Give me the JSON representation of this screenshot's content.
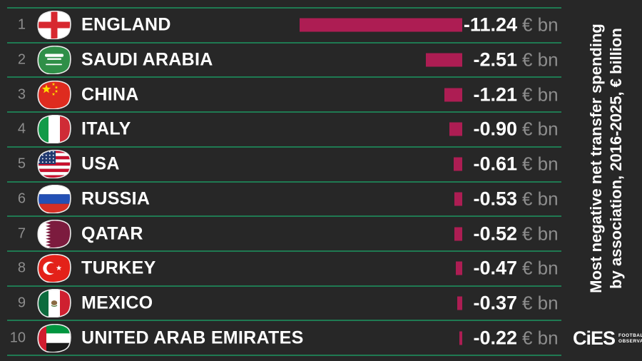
{
  "title_panel": {
    "line1": "Most negative net transfer spending",
    "line2": "by association, 2016-2025, € billion"
  },
  "logo": {
    "wordmark": "CiES",
    "sub_line1": "FOOTBALL",
    "sub_line2": "OBSERVATORY",
    "ball_icon": "soccer-ball-icon"
  },
  "colors": {
    "background": "#272727",
    "separator_line": "#1f7a52",
    "bar": "#ad1d53",
    "rank_text": "#8d8d8d",
    "unit_text": "#8d8d8d",
    "value_text": "#ffffff"
  },
  "chart_data": {
    "type": "bar",
    "orientation": "horizontal",
    "title": "Most negative net transfer spending by association, 2016-2025, € billion",
    "unit": "€ bn",
    "value_axis_note": "bars right-aligned, length proportional to absolute value, no axis shown",
    "categories": [
      "ENGLAND",
      "SAUDI ARABIA",
      "CHINA",
      "ITALY",
      "USA",
      "RUSSIA",
      "QATAR",
      "TURKEY",
      "MEXICO",
      "UNITED ARAB EMIRATES"
    ],
    "values": [
      -11.24,
      -2.51,
      -1.21,
      -0.9,
      -0.61,
      -0.53,
      -0.52,
      -0.47,
      -0.37,
      -0.22
    ],
    "rows": [
      {
        "rank": "1",
        "country": "ENGLAND",
        "flag_icon": "flag-england",
        "value": -11.24,
        "value_label": "-11.24",
        "unit": "€ bn"
      },
      {
        "rank": "2",
        "country": "SAUDI ARABIA",
        "flag_icon": "flag-saudi-arabia",
        "value": -2.51,
        "value_label": "-2.51",
        "unit": "€ bn"
      },
      {
        "rank": "3",
        "country": "CHINA",
        "flag_icon": "flag-china",
        "value": -1.21,
        "value_label": "-1.21",
        "unit": "€ bn"
      },
      {
        "rank": "4",
        "country": "ITALY",
        "flag_icon": "flag-italy",
        "value": -0.9,
        "value_label": "-0.90",
        "unit": "€ bn"
      },
      {
        "rank": "5",
        "country": "USA",
        "flag_icon": "flag-usa",
        "value": -0.61,
        "value_label": "-0.61",
        "unit": "€ bn"
      },
      {
        "rank": "6",
        "country": "RUSSIA",
        "flag_icon": "flag-russia",
        "value": -0.53,
        "value_label": "-0.53",
        "unit": "€ bn"
      },
      {
        "rank": "7",
        "country": "QATAR",
        "flag_icon": "flag-qatar",
        "value": -0.52,
        "value_label": "-0.52",
        "unit": "€ bn"
      },
      {
        "rank": "8",
        "country": "TURKEY",
        "flag_icon": "flag-turkey",
        "value": -0.47,
        "value_label": "-0.47",
        "unit": "€ bn"
      },
      {
        "rank": "9",
        "country": "MEXICO",
        "flag_icon": "flag-mexico",
        "value": -0.37,
        "value_label": "-0.37",
        "unit": "€ bn"
      },
      {
        "rank": "10",
        "country": "UNITED ARAB EMIRATES",
        "flag_icon": "flag-united-arab-emirates",
        "value": -0.22,
        "value_label": "-0.22",
        "unit": "€ bn"
      }
    ]
  }
}
